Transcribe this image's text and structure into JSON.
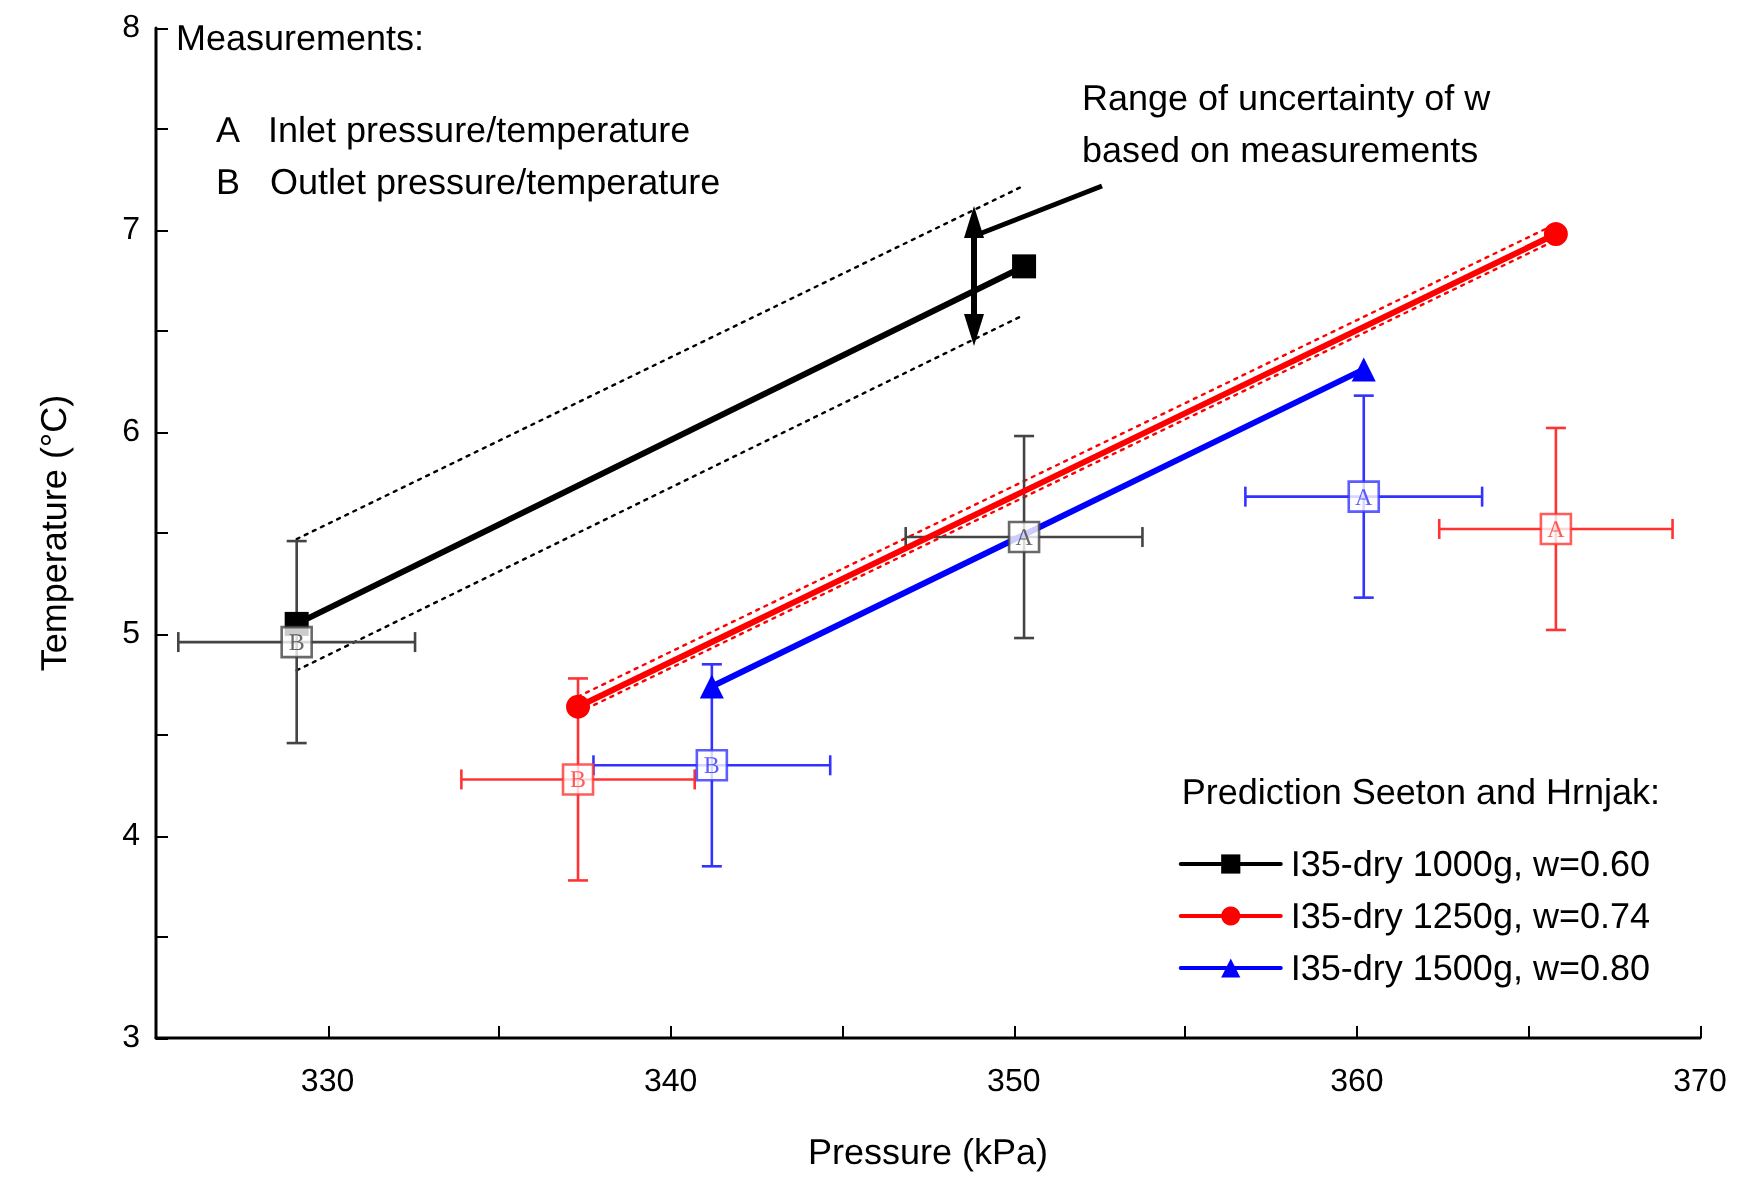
{
  "chart_data": {
    "type": "line",
    "xlabel": "Pressure (kPa)",
    "ylabel": "Temperature (°C)",
    "xlim": [
      325,
      370
    ],
    "xticks": [
      330,
      340,
      350,
      360,
      370
    ],
    "ylim": [
      3,
      8
    ],
    "yticks": [
      3,
      4,
      5,
      6,
      7,
      8
    ],
    "grid": false,
    "legend": "bottom right",
    "legend_title": "Prediction Seeton and Hrnjak:",
    "annotations": [
      "Measurements:",
      "A   Inlet pressure/temperature",
      "B   Outlet pressure/temperature",
      "Range of uncertainty of w based on measurements"
    ],
    "series": [
      {
        "name": "I35-dry 1000g, w=0.60",
        "color": "#000000",
        "marker": "square",
        "x": [
          329.1,
          350.3
        ],
        "values": [
          5.05,
          6.82
        ]
      },
      {
        "name": "I35-dry 1250g, w=0.74",
        "color": "#ff0000",
        "marker": "circle",
        "x": [
          337.3,
          365.8
        ],
        "values": [
          4.64,
          6.98
        ]
      },
      {
        "name": "I35-dry 1500g, w=0.80",
        "color": "#0000ff",
        "marker": "triangle",
        "x": [
          341.2,
          360.2
        ],
        "values": [
          4.74,
          6.31
        ]
      },
      {
        "color": "#000000",
        "marker": "none",
        "line_style": "dotted",
        "x": [
          329.1,
          350.3
        ],
        "values": [
          5.47,
          7.22
        ]
      },
      {
        "color": "#000000",
        "marker": "none",
        "line_style": "dotted",
        "x": [
          329.1,
          350.3
        ],
        "values": [
          4.82,
          6.58
        ]
      },
      {
        "color": "#ff0000",
        "marker": "none",
        "line_style": "dotted",
        "x": [
          337.3,
          365.8
        ],
        "values": [
          4.69,
          7.03
        ]
      },
      {
        "color": "#ff0000",
        "marker": "none",
        "line_style": "dotted",
        "x": [
          337.3,
          365.8
        ],
        "values": [
          4.61,
          6.95
        ]
      },
      {
        "type": "scatter",
        "color": "#444444",
        "marker": "square",
        "x": [
          329.1,
          350.3
        ],
        "values": [
          4.96,
          5.48
        ],
        "errors": [
          0.5,
          0.5
        ],
        "xerrors": [
          3.45,
          3.45
        ],
        "value_labels": [
          "B",
          "A"
        ]
      },
      {
        "type": "scatter",
        "color": "#ff3333",
        "marker": "square",
        "x": [
          337.3,
          365.8
        ],
        "values": [
          4.28,
          5.52
        ],
        "errors": [
          0.5,
          0.5
        ],
        "xerrors": [
          3.4,
          3.4
        ],
        "value_labels": [
          "B",
          "A"
        ]
      },
      {
        "type": "scatter",
        "color": "#3333ff",
        "marker": "square",
        "x": [
          341.2,
          360.2
        ],
        "values": [
          4.35,
          5.68
        ],
        "errors": [
          0.5,
          0.5
        ],
        "xerrors": [
          3.45,
          3.45
        ],
        "value_labels": [
          "B",
          "A"
        ]
      }
    ]
  }
}
